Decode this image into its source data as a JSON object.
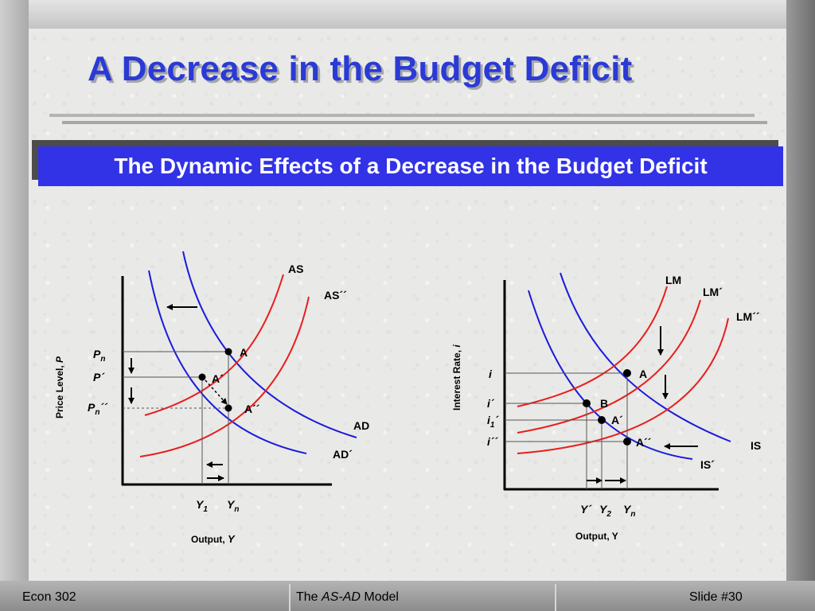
{
  "slide": {
    "title": "A Decrease in the Budget Deficit",
    "subtitle": "The Dynamic Effects of a Decrease in the Budget Deficit"
  },
  "left_diagram": {
    "y_axis_label": "Price Level,",
    "y_axis_var": "P",
    "x_axis_label": "Output,",
    "x_axis_var": "Y",
    "curves": {
      "as": "AS",
      "as2": "AS´´",
      "ad": "AD",
      "ad2": "AD´"
    },
    "points": {
      "a": "A",
      "a1": "A´",
      "a2": "A´´"
    },
    "price_labels": {
      "pn": "P",
      "pn_sub": "n",
      "p1": "P´",
      "pn2": "P",
      "pn2_sub": "n",
      "pn2_sup": "´´"
    },
    "output_labels": {
      "y1": "Y",
      "y1_sub": "1",
      "yn": "Y",
      "yn_sub": "n"
    }
  },
  "right_diagram": {
    "y_axis_label": "Interest Rate,",
    "y_axis_var": "i",
    "x_axis_label": "Output, Y",
    "curves": {
      "lm": "LM",
      "lm1": "LM´",
      "lm2": "LM´´",
      "is": "IS",
      "is1": "IS´"
    },
    "points": {
      "a": "A",
      "b": "B",
      "a1": "A´",
      "a2": "A´´"
    },
    "rate_labels": {
      "i": "i",
      "i1": "i´",
      "i_1": "i",
      "i_1_sub": "1",
      "i_1_sup": "´",
      "i2": "i´´"
    },
    "output_labels": {
      "y1": "Y´",
      "y2": "Y",
      "y2_sub": "2",
      "yn": "Y",
      "yn_sub": "n"
    }
  },
  "footer": {
    "left": "Econ 302",
    "center_pre": "The ",
    "center_em": "AS-AD",
    "center_post": " Model",
    "right": "Slide #30"
  },
  "colors": {
    "blue_curve": "#1a1adc",
    "red_curve": "#e81e1e",
    "title": "#2a3ad6",
    "banner": "#3232e6"
  }
}
